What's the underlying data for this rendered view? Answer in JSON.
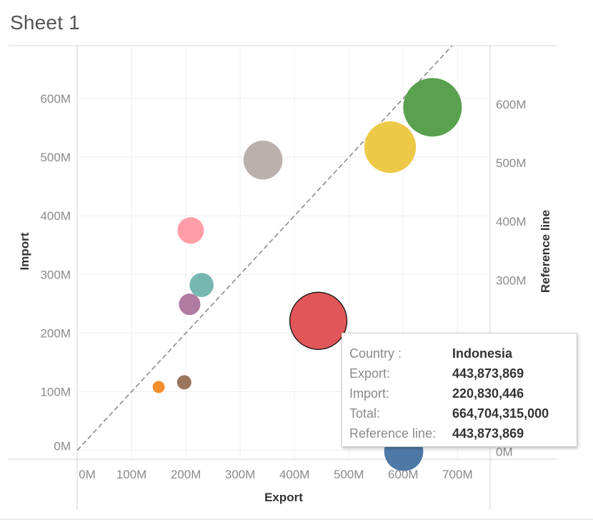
{
  "sheet": {
    "title": "Sheet 1"
  },
  "chart_data": {
    "type": "scatter",
    "xlabel": "Export",
    "ylabel": "Import",
    "y2label": "Reference line",
    "xlim": [
      0,
      760000000
    ],
    "ylim": [
      -15000000,
      690000000
    ],
    "x_ticks": [
      {
        "value": 0,
        "label": "0M"
      },
      {
        "value": 100000000,
        "label": "100M"
      },
      {
        "value": 200000000,
        "label": "200M"
      },
      {
        "value": 300000000,
        "label": "300M"
      },
      {
        "value": 400000000,
        "label": "400M"
      },
      {
        "value": 500000000,
        "label": "500M"
      },
      {
        "value": 600000000,
        "label": "600M"
      },
      {
        "value": 700000000,
        "label": "700M"
      }
    ],
    "y_ticks": [
      {
        "value": 0,
        "label": "0M"
      },
      {
        "value": 100000000,
        "label": "100M"
      },
      {
        "value": 200000000,
        "label": "200M"
      },
      {
        "value": 300000000,
        "label": "300M"
      },
      {
        "value": 400000000,
        "label": "400M"
      },
      {
        "value": 500000000,
        "label": "500M"
      },
      {
        "value": 600000000,
        "label": "600M"
      }
    ],
    "y2_ticks": [
      {
        "value": 0,
        "label": "0M"
      },
      {
        "value": 300000000,
        "label": "300M"
      },
      {
        "value": 400000000,
        "label": "400M"
      },
      {
        "value": 500000000,
        "label": "500M"
      },
      {
        "value": 600000000,
        "label": "600M"
      }
    ],
    "grid": true,
    "reference_line": {
      "type": "identity",
      "style": "dashed",
      "color": "#8c8c8c"
    },
    "size_measure": "Total",
    "points": [
      {
        "x": 150000000,
        "y": 108000000,
        "total": 16200000000,
        "color": "#f28e2b"
      },
      {
        "x": 197000000,
        "y": 116000000,
        "total": 22900000000,
        "color": "#9c755f"
      },
      {
        "x": 207000000,
        "y": 249000000,
        "total": 51500000000,
        "color": "#b07aa1"
      },
      {
        "x": 229000000,
        "y": 282000000,
        "total": 64600000000,
        "color": "#76b7b2"
      },
      {
        "x": 209000000,
        "y": 375000000,
        "total": 78400000000,
        "color": "#ff9da7"
      },
      {
        "x": 342000000,
        "y": 495000000,
        "total": 169300000000,
        "color": "#bab0ac"
      },
      {
        "x": 443873869,
        "y": 220830446,
        "total": 664704315000,
        "color": "#e15759",
        "highlighted": true
      },
      {
        "x": 601000000,
        "y": -2000000,
        "total": 170000000000,
        "color": "#4e79a7"
      },
      {
        "x": 576000000,
        "y": 517000000,
        "total": 297800000000,
        "color": "#edc948"
      },
      {
        "x": 654000000,
        "y": 585000000,
        "total": 382600000000,
        "color": "#59a14f"
      }
    ]
  },
  "tooltip": {
    "rows": [
      {
        "label": "Country :",
        "value": "Indonesia"
      },
      {
        "label": "Export:",
        "value": "443,873,869"
      },
      {
        "label": "Import:",
        "value": "220,830,446"
      },
      {
        "label": "Total:",
        "value": "664,704,315,000"
      },
      {
        "label": "Reference line:",
        "value": "443,873,869"
      }
    ]
  }
}
